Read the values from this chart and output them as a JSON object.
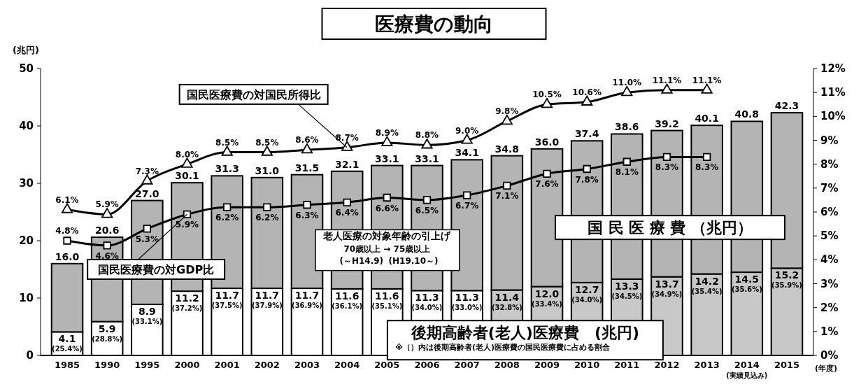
{
  "chart_data": {
    "type": "bar",
    "title": "医療費の動向",
    "ylabel": "(兆円)",
    "xlabel": "(年度)",
    "stacked": true,
    "categories": [
      "1985",
      "1990",
      "1995",
      "2000",
      "2001",
      "2002",
      "2003",
      "2004",
      "2005",
      "2006",
      "2007",
      "2008",
      "2009",
      "2010",
      "2011",
      "2012",
      "2013",
      "2014",
      "2015"
    ],
    "series": [
      {
        "name": "後期高齢者(老人)医療費　(兆円)",
        "colors": [
          "#ffffff",
          "#ffffff",
          "#ffffff",
          "#ffffff",
          "#ffffff",
          "#ffffff",
          "#ffffff",
          "#ffffff",
          "#ffffff",
          "#ffffff",
          "#ffffff",
          "#c8c8c8",
          "#c8c8c8",
          "#c8c8c8",
          "#c8c8c8",
          "#c8c8c8",
          "#c8c8c8",
          "#c8c8c8",
          "#c8c8c8"
        ],
        "values": [
          4.1,
          5.9,
          8.9,
          11.2,
          11.7,
          11.7,
          11.7,
          11.6,
          11.6,
          11.3,
          11.3,
          11.4,
          12.0,
          12.7,
          13.3,
          13.7,
          14.2,
          14.5,
          15.2
        ],
        "value_labels": [
          "4.1 (25.4%)",
          "5.9 (28.8%)",
          "8.9 (33.1%)",
          "11.2 (37.2%)",
          "11.7 (37.5%)",
          "11.7 (37.9%)",
          "11.7 (36.9%)",
          "11.6 (36.1%)",
          "11.6 (35.1%)",
          "11.3 (34.0%)",
          "11.3 (33.0%)",
          "11.4 (32.8%)",
          "12.0 (33.4%)",
          "12.7 (34.0%)",
          "13.3 (34.5%)",
          "13.7 (34.9%)",
          "14.2 (35.4%)",
          "14.5 (35.6%)",
          "15.2 (35.9%)"
        ]
      },
      {
        "name": "国 民 医 療 費 （兆円）",
        "color": "#b4b4b4",
        "values": [
          11.9,
          14.7,
          18.1,
          18.9,
          19.6,
          19.3,
          19.8,
          20.5,
          21.5,
          21.8,
          22.8,
          23.4,
          24.0,
          24.7,
          25.3,
          25.5,
          25.9,
          26.3,
          27.1
        ]
      },
      {
        "name": "国民医療費の対国民所得比",
        "type": "line",
        "axis": "y2",
        "color": "#000000",
        "marker": "triangle",
        "values": [
          6.1,
          5.9,
          7.3,
          8.0,
          8.5,
          8.5,
          8.6,
          8.7,
          8.9,
          8.8,
          9.0,
          9.8,
          10.5,
          10.6,
          11.0,
          11.1,
          11.1,
          null,
          null
        ],
        "value_labels": [
          "6.1%",
          "5.9%",
          "7.3%",
          "8.0%",
          "8.5%",
          "8.5%",
          "8.6%",
          "8.7%",
          "8.9%",
          "8.8%",
          "9.0%",
          "9.8%",
          "10.5%",
          "10.6%",
          "11.0%",
          "11.1%",
          "11.1%",
          null,
          null
        ]
      },
      {
        "name": "国民医療費の対GDP比",
        "type": "line",
        "axis": "y2",
        "color": "#000000",
        "marker": "square",
        "values": [
          4.8,
          4.6,
          5.3,
          5.9,
          6.2,
          6.2,
          6.3,
          6.4,
          6.6,
          6.5,
          6.7,
          7.1,
          7.6,
          7.8,
          8.1,
          8.3,
          8.3,
          null,
          null
        ],
        "value_labels": [
          "4.8%",
          "4.6%",
          "5.3%",
          "5.9%",
          "6.2%",
          "6.2%",
          "6.3%",
          "6.4%",
          "6.6%",
          "6.5%",
          "6.7%",
          "7.1%",
          "7.6%",
          "7.8%",
          "8.1%",
          "8.3%",
          "8.3%",
          null,
          null
        ]
      }
    ],
    "totals": [
      "16.0",
      "20.6",
      "27.0",
      "30.1",
      "31.3",
      "31.0",
      "31.5",
      "32.1",
      "33.1",
      "33.1",
      "34.1",
      "34.8",
      "36.0",
      "37.4",
      "38.6",
      "39.2",
      "40.1",
      "40.8",
      "42.3"
    ],
    "ylim": [
      0,
      50
    ],
    "yticks": [
      0,
      10,
      20,
      30,
      40,
      50
    ],
    "y2lim": [
      0,
      12
    ],
    "y2ticks": [
      {
        "value": 0,
        "label": "0%"
      },
      {
        "value": 1,
        "label": "1%"
      },
      {
        "value": 2,
        "label": "2%"
      },
      {
        "value": 3,
        "label": "3%"
      },
      {
        "value": 4,
        "label": "4%"
      },
      {
        "value": 5,
        "label": "5%"
      },
      {
        "value": 6,
        "label": "6%"
      },
      {
        "value": 7,
        "label": "7%"
      },
      {
        "value": 8,
        "label": "8%"
      },
      {
        "value": 9,
        "label": "9%"
      },
      {
        "value": 10,
        "label": "10%"
      },
      {
        "value": 11,
        "label": "11%"
      },
      {
        "value": 12,
        "label": "12%"
      }
    ],
    "line_style": "solid",
    "annotations": [
      "※（）内は後期高齢者(老人)医療費の国民医療費に占める割合",
      "老人医療の対象年齢の引上げ",
      "70歳以上 → 75歳以上",
      "(～H14.9)",
      "(H19.10～)",
      "(実績見込み)"
    ]
  }
}
